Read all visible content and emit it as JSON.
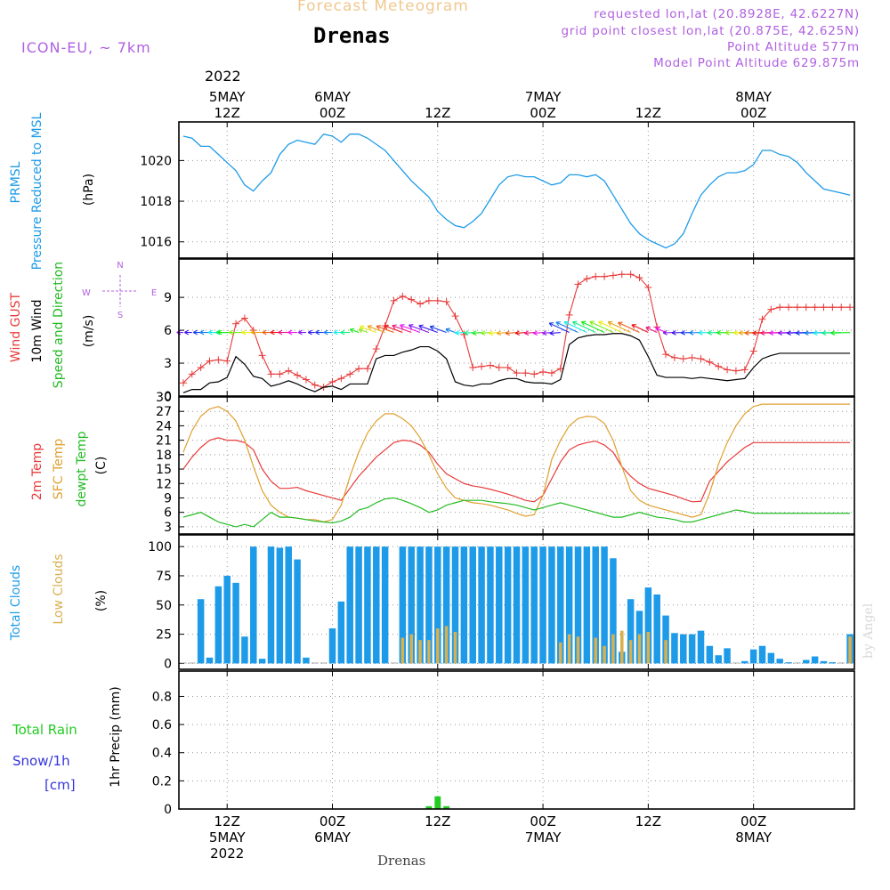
{
  "header": {
    "supertitle": "Forecast Meteogram",
    "location": "Drenas",
    "model": "ICON-EU, ~ 7km",
    "requested": "requested lon,lat (20.8928E, 42.6227N)",
    "grid_point": "grid point closest lon,lat (20.875E, 42.625N)",
    "point_altitude": "Point Altitude 577m",
    "model_altitude": "Model Point Altitude 629.875m",
    "footer_location": "Drenas",
    "watermark": "by Angel"
  },
  "time_axis": {
    "top_year": "2022",
    "labels": [
      {
        "t": 0,
        "lines": [
          "5MAY",
          "12Z"
        ]
      },
      {
        "t": 12,
        "lines": [
          "6MAY",
          "00Z"
        ]
      },
      {
        "t": 24,
        "lines": [
          "12Z"
        ]
      },
      {
        "t": 36,
        "lines": [
          "7MAY",
          "00Z"
        ]
      },
      {
        "t": 48,
        "lines": [
          "12Z"
        ]
      },
      {
        "t": 60,
        "lines": [
          "8MAY",
          "00Z"
        ]
      }
    ],
    "bottom_labels": [
      {
        "t": 0,
        "lines": [
          "12Z",
          "5MAY",
          "2022"
        ]
      },
      {
        "t": 12,
        "lines": [
          "00Z",
          "6MAY"
        ]
      },
      {
        "t": 24,
        "lines": [
          "12Z"
        ]
      },
      {
        "t": 36,
        "lines": [
          "00Z",
          "7MAY"
        ]
      },
      {
        "t": 48,
        "lines": [
          "12Z"
        ]
      },
      {
        "t": 60,
        "lines": [
          "00Z",
          "8MAY"
        ]
      }
    ]
  },
  "colors": {
    "pressure": "#1e9be8",
    "gust": "#e83a3a",
    "wind": "#000000",
    "direction": "#22bb22",
    "temp2m": "#e83a3a",
    "sfc": "#e0a030",
    "dew": "#22bb22",
    "total_clouds": "#1e9be8",
    "low_clouds": "#d8b050",
    "rain": "#22cc22",
    "snow": "#3333dd",
    "model_label": "#b060e0",
    "supertitle": "#f0c890"
  },
  "chart_data": [
    {
      "type": "line",
      "panel": "pressure",
      "label_lines": [
        "PRMSL",
        "Pressure Reduced to MSL"
      ],
      "unit": "(hPa)",
      "ylim": [
        1015.2,
        1021.9
      ],
      "yticks": [
        1016,
        1018,
        1020
      ],
      "x": [
        -5,
        -4,
        -3,
        -2,
        -1,
        0,
        1,
        2,
        3,
        4,
        5,
        6,
        7,
        8,
        9,
        10,
        11,
        12,
        13,
        14,
        15,
        16,
        17,
        18,
        19,
        20,
        21,
        22,
        23,
        24,
        25,
        26,
        27,
        28,
        29,
        30,
        31,
        32,
        33,
        34,
        35,
        36,
        37,
        38,
        39,
        40,
        41,
        42,
        43,
        44,
        45,
        46,
        47,
        48,
        49,
        50,
        51,
        52,
        53,
        54,
        55,
        56,
        57,
        58,
        59,
        60,
        61,
        62,
        63,
        64,
        65,
        66,
        67,
        68,
        69,
        70,
        71
      ],
      "values": [
        1021.2,
        1021.1,
        1020.7,
        1020.7,
        1020.3,
        1019.9,
        1019.5,
        1018.8,
        1018.5,
        1019.0,
        1019.4,
        1020.3,
        1020.8,
        1021.0,
        1020.9,
        1020.8,
        1021.3,
        1021.2,
        1020.9,
        1021.3,
        1021.3,
        1021.1,
        1020.8,
        1020.5,
        1020.0,
        1019.5,
        1019.0,
        1018.6,
        1018.2,
        1017.5,
        1017.1,
        1016.8,
        1016.7,
        1017.0,
        1017.4,
        1018.1,
        1018.8,
        1019.2,
        1019.3,
        1019.2,
        1019.2,
        1019.0,
        1018.8,
        1018.9,
        1019.3,
        1019.3,
        1019.2,
        1019.3,
        1019.0,
        1018.3,
        1017.6,
        1016.9,
        1016.4,
        1016.1,
        1015.9,
        1015.7,
        1015.9,
        1016.4,
        1017.4,
        1018.3,
        1018.8,
        1019.2,
        1019.4,
        1019.4,
        1019.5,
        1019.8,
        1020.5,
        1020.5,
        1020.3,
        1020.2,
        1019.9,
        1019.4,
        1019.0,
        1018.6,
        1018.5,
        1018.4,
        1018.3
      ]
    },
    {
      "type": "line",
      "panel": "wind",
      "label_lines": [
        "Wind GUST",
        "10m Wind",
        "Speed and Direction"
      ],
      "unit": "(m/s)",
      "ylim": [
        0,
        12.5
      ],
      "yticks": [
        0,
        3,
        6,
        9
      ],
      "x": [
        -5,
        -4,
        -3,
        -2,
        -1,
        0,
        1,
        2,
        3,
        4,
        5,
        6,
        7,
        8,
        9,
        10,
        11,
        12,
        13,
        14,
        15,
        16,
        17,
        18,
        19,
        20,
        21,
        22,
        23,
        24,
        25,
        26,
        27,
        28,
        29,
        30,
        31,
        32,
        33,
        34,
        35,
        36,
        37,
        38,
        39,
        40,
        41,
        42,
        43,
        44,
        45,
        46,
        47,
        48,
        49,
        50,
        51,
        52,
        53,
        54,
        55,
        56,
        57,
        58,
        59,
        60,
        61,
        62,
        63,
        64,
        65,
        66,
        67,
        68,
        69,
        70,
        71
      ],
      "series": [
        {
          "name": "Wind GUST",
          "values": [
            1.2,
            2.0,
            2.6,
            3.2,
            3.3,
            3.2,
            6.6,
            7.1,
            6.0,
            3.7,
            2.0,
            2.0,
            2.3,
            1.9,
            1.5,
            1.0,
            0.8,
            1.3,
            1.6,
            2.0,
            2.5,
            2.5,
            4.3,
            6.4,
            8.7,
            9.1,
            8.8,
            8.4,
            8.7,
            8.7,
            8.6,
            7.3,
            5.6,
            2.6,
            2.7,
            2.8,
            2.6,
            2.6,
            2.1,
            2.1,
            2.0,
            2.2,
            2.1,
            2.5,
            7.4,
            10.2,
            10.7,
            10.9,
            10.9,
            11.0,
            11.1,
            11.1,
            10.8,
            9.9,
            6.3,
            3.8,
            3.5,
            3.4,
            3.5,
            3.4,
            3.1,
            2.7,
            2.4,
            2.3,
            2.4,
            4.1,
            7.0,
            7.9,
            8.1,
            8.1,
            8.1,
            8.1,
            8.1,
            8.1,
            8.1,
            8.1,
            8.1
          ]
        },
        {
          "name": "10m Wind",
          "values": [
            0.3,
            0.6,
            0.6,
            1.2,
            1.3,
            1.7,
            3.6,
            2.9,
            1.8,
            1.6,
            0.9,
            1.1,
            1.4,
            1.1,
            0.7,
            0.4,
            0.8,
            0.9,
            0.6,
            1.1,
            1.1,
            1.1,
            3.4,
            3.7,
            3.7,
            4.0,
            4.2,
            4.5,
            4.5,
            4.1,
            3.4,
            1.3,
            1.0,
            0.9,
            1.1,
            1.1,
            1.4,
            1.6,
            1.6,
            1.3,
            1.2,
            1.2,
            1.1,
            1.5,
            4.7,
            5.3,
            5.5,
            5.6,
            5.6,
            5.7,
            5.7,
            5.5,
            5.1,
            3.6,
            1.9,
            1.7,
            1.7,
            1.7,
            1.6,
            1.7,
            1.6,
            1.5,
            1.4,
            1.5,
            1.6,
            2.6,
            3.4,
            3.7,
            3.9,
            3.9,
            3.9,
            3.9,
            3.9,
            3.9,
            3.9,
            3.9,
            3.9
          ]
        }
      ]
    },
    {
      "type": "line",
      "panel": "temperature",
      "label_lines": [
        "2m Temp",
        "SFC Temp",
        "dewpt Temp"
      ],
      "unit": "(C)",
      "ylim": [
        1.5,
        30
      ],
      "yticks": [
        3,
        6,
        9,
        12,
        15,
        18,
        21,
        24,
        27,
        30
      ],
      "x": [
        -5,
        -4,
        -3,
        -2,
        -1,
        0,
        1,
        2,
        3,
        4,
        5,
        6,
        7,
        8,
        9,
        10,
        11,
        12,
        13,
        14,
        15,
        16,
        17,
        18,
        19,
        20,
        21,
        22,
        23,
        24,
        25,
        26,
        27,
        28,
        29,
        30,
        31,
        32,
        33,
        34,
        35,
        36,
        37,
        38,
        39,
        40,
        41,
        42,
        43,
        44,
        45,
        46,
        47,
        48,
        49,
        50,
        51,
        52,
        53,
        54,
        55,
        56,
        57,
        58,
        59,
        60,
        61,
        62,
        63,
        64,
        65,
        66,
        67,
        68,
        69,
        70,
        71
      ],
      "series": [
        {
          "name": "2m Temp",
          "values": [
            15.0,
            17.5,
            19.5,
            21.0,
            21.5,
            21.0,
            21.0,
            20.5,
            19.0,
            15.0,
            12.5,
            11.0,
            11.0,
            11.2,
            10.5,
            10.0,
            9.5,
            9.0,
            8.5,
            11.0,
            13.5,
            15.5,
            17.5,
            19.0,
            20.5,
            21.0,
            20.8,
            20.0,
            18.5,
            16.0,
            14.0,
            13.0,
            12.0,
            11.5,
            11.2,
            10.8,
            10.3,
            9.8,
            9.2,
            8.5,
            8.2,
            9.5,
            13.0,
            16.5,
            19.0,
            20.0,
            20.5,
            20.8,
            20.0,
            18.5,
            15.5,
            13.5,
            12.0,
            11.0,
            10.5,
            10.0,
            9.5,
            8.8,
            8.2,
            8.3,
            12.5,
            14.5,
            16.5,
            18.0,
            19.5,
            20.5,
            20.5,
            20.5,
            20.5,
            20.5,
            20.5,
            20.5,
            20.5,
            20.5,
            20.5,
            20.5,
            20.5
          ]
        },
        {
          "name": "SFC Temp",
          "values": [
            18.5,
            23.0,
            26.0,
            27.5,
            28.0,
            27.0,
            25.0,
            21.0,
            15.5,
            10.5,
            7.5,
            6.0,
            5.0,
            4.8,
            4.5,
            4.5,
            4.0,
            4.5,
            7.5,
            13.5,
            18.5,
            22.5,
            25.0,
            26.5,
            26.5,
            25.5,
            24.0,
            21.5,
            18.0,
            14.0,
            11.0,
            9.0,
            8.5,
            8.0,
            7.8,
            7.5,
            7.0,
            6.5,
            5.8,
            5.2,
            5.5,
            9.5,
            17.0,
            21.0,
            24.0,
            25.5,
            26.0,
            25.8,
            24.5,
            21.0,
            15.5,
            10.5,
            8.5,
            7.5,
            7.0,
            6.5,
            6.0,
            5.5,
            5.0,
            5.5,
            10.0,
            16.0,
            20.5,
            24.0,
            26.5,
            28.0,
            28.5,
            28.5,
            28.5,
            28.5,
            28.5,
            28.5,
            28.5,
            28.5,
            28.5,
            28.5,
            28.5
          ]
        },
        {
          "name": "dewpt Temp",
          "values": [
            5.0,
            5.5,
            6.0,
            5.0,
            4.0,
            3.5,
            3.0,
            3.5,
            3.0,
            4.5,
            6.0,
            5.0,
            5.0,
            4.8,
            4.5,
            4.2,
            4.0,
            3.8,
            4.2,
            5.0,
            6.5,
            7.0,
            8.0,
            8.8,
            9.0,
            8.5,
            7.8,
            7.0,
            6.0,
            6.5,
            7.5,
            8.0,
            8.5,
            8.5,
            8.5,
            8.2,
            8.0,
            7.8,
            7.5,
            7.0,
            6.5,
            7.0,
            7.5,
            8.0,
            7.5,
            7.0,
            6.5,
            6.0,
            5.5,
            5.0,
            5.0,
            5.5,
            6.0,
            5.5,
            5.0,
            4.8,
            4.5,
            4.0,
            4.0,
            4.5,
            5.0,
            5.5,
            6.0,
            6.5,
            6.2,
            5.8,
            5.8,
            5.8,
            5.8,
            5.8,
            5.8,
            5.8,
            5.8,
            5.8,
            5.8,
            5.8,
            5.8
          ]
        }
      ]
    },
    {
      "type": "bar",
      "panel": "clouds",
      "label_lines": [
        "Total Clouds",
        "Low Clouds"
      ],
      "unit": "(%)",
      "ylim": [
        -5,
        110
      ],
      "yticks": [
        0,
        25,
        50,
        75,
        100
      ],
      "x": [
        -5,
        -4,
        -3,
        -2,
        -1,
        0,
        1,
        2,
        3,
        4,
        5,
        6,
        7,
        8,
        9,
        10,
        11,
        12,
        13,
        14,
        15,
        16,
        17,
        18,
        19,
        20,
        21,
        22,
        23,
        24,
        25,
        26,
        27,
        28,
        29,
        30,
        31,
        32,
        33,
        34,
        35,
        36,
        37,
        38,
        39,
        40,
        41,
        42,
        43,
        44,
        45,
        46,
        47,
        48,
        49,
        50,
        51,
        52,
        53,
        54,
        55,
        56,
        57,
        58,
        59,
        60,
        61,
        62,
        63,
        64,
        65,
        66,
        67,
        68,
        69,
        70,
        71
      ],
      "series": [
        {
          "name": "Total Clouds",
          "values": [
            0,
            0,
            55,
            5,
            66,
            75,
            69,
            23,
            100,
            4,
            100,
            99,
            100,
            89,
            5,
            0,
            0,
            30,
            53,
            100,
            100,
            100,
            100,
            100,
            0,
            100,
            100,
            100,
            100,
            100,
            100,
            100,
            100,
            100,
            100,
            100,
            100,
            100,
            100,
            100,
            100,
            100,
            100,
            100,
            100,
            100,
            100,
            100,
            100,
            90,
            10,
            55,
            45,
            65,
            59,
            41,
            26,
            25,
            25,
            28,
            15,
            7,
            13,
            0,
            2,
            12,
            15,
            9,
            4,
            1,
            0,
            3,
            6,
            2,
            1,
            0,
            25
          ]
        },
        {
          "name": "Low Clouds",
          "values": [
            0,
            0,
            0,
            0,
            0,
            0,
            0,
            0,
            0,
            0,
            0,
            0,
            0,
            0,
            0,
            0,
            0,
            0,
            0,
            0,
            0,
            0,
            0,
            0,
            0,
            22,
            25,
            20,
            20,
            30,
            32,
            27,
            0,
            0,
            0,
            0,
            0,
            0,
            0,
            0,
            0,
            0,
            0,
            18,
            25,
            23,
            0,
            22,
            15,
            25,
            28,
            20,
            25,
            27,
            0,
            20,
            0,
            0,
            0,
            0,
            0,
            0,
            0,
            0,
            0,
            0,
            0,
            0,
            0,
            0,
            0,
            0,
            0,
            0,
            0,
            0,
            23
          ]
        }
      ]
    },
    {
      "type": "bar",
      "panel": "precip",
      "label_lines": [
        "1hr Precip (mm)"
      ],
      "side_labels": {
        "rain": "Total  Rain",
        "snow": "Snow/1h",
        "snow_unit": "[cm]"
      },
      "ylim": [
        0,
        0.98
      ],
      "yticks": [
        0,
        0.2,
        0.4,
        0.6,
        0.8
      ],
      "x": [
        23,
        24,
        25
      ],
      "series": [
        {
          "name": "Total Rain",
          "values": [
            0.02,
            0.09,
            0.02
          ]
        }
      ]
    }
  ]
}
